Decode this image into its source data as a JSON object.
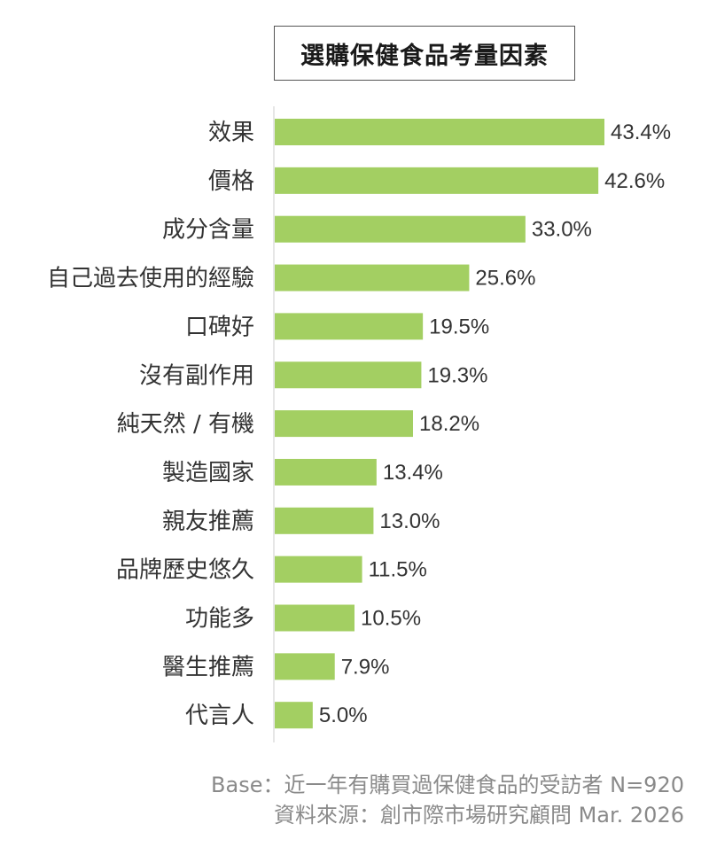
{
  "chart_data": {
    "type": "bar",
    "orientation": "horizontal",
    "title": "選購保健食品考量因素",
    "categories": [
      "效果",
      "價格",
      "成分含量",
      "自己過去使用的經驗",
      "口碑好",
      "沒有副作用",
      "純天然 / 有機",
      "製造國家",
      "親友推薦",
      "品牌歷史悠久",
      "功能多",
      "醫生推薦",
      "代言人"
    ],
    "values": [
      43.4,
      42.6,
      33.0,
      25.6,
      19.5,
      19.3,
      18.2,
      13.4,
      13.0,
      11.5,
      10.5,
      7.9,
      5.0
    ],
    "value_labels": [
      "43.4%",
      "42.6%",
      "33.0%",
      "25.6%",
      "19.5%",
      "19.3%",
      "18.2%",
      "13.4%",
      "13.0%",
      "11.5%",
      "10.5%",
      "7.9%",
      "5.0%"
    ],
    "unit": "%",
    "xlim": [
      0,
      50
    ],
    "bar_color": "#a3cf62",
    "axis_color": "#cccccc",
    "grid": false,
    "legend": "none"
  },
  "footer": {
    "base_note": "Base：近一年有購買過保健食品的受訪者 N=920",
    "source_note": "資料來源：創市際市場研究顧問 Mar. 2026"
  }
}
